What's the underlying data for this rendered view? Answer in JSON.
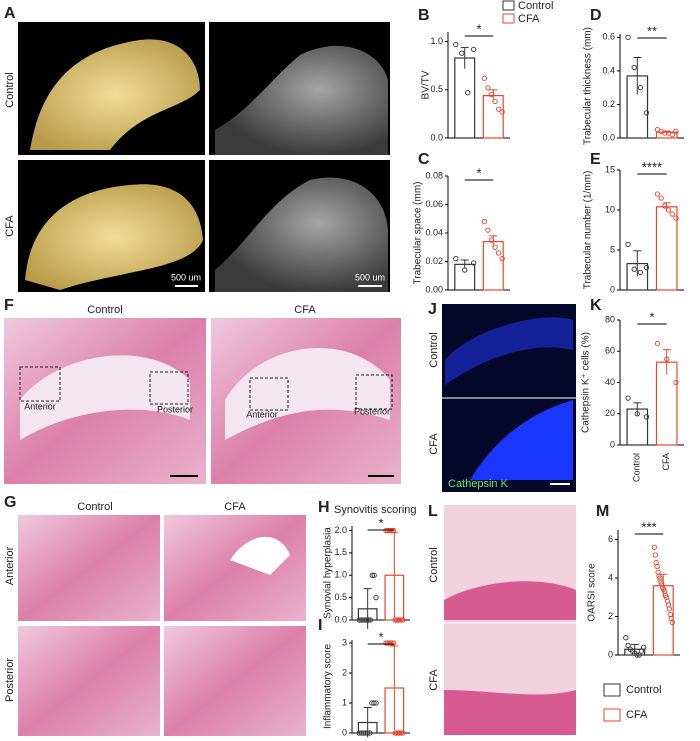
{
  "legend": {
    "entries": [
      {
        "name": "Control",
        "color": "#333333"
      },
      {
        "name": "CFA",
        "color": "#e8452c"
      }
    ]
  },
  "panels": {
    "A": {
      "label": "A",
      "rows": [
        "Control",
        "CFA"
      ],
      "scale_bars": [
        "500 um",
        "500 um"
      ]
    },
    "F": {
      "label": "F",
      "columns": [
        "Control",
        "CFA"
      ],
      "regions": [
        "Anterior",
        "Posterior",
        "Anterior",
        "Posterior"
      ]
    },
    "G": {
      "label": "G",
      "columns": [
        "Control",
        "CFA"
      ],
      "rows": [
        "Anterior",
        "Posterior"
      ]
    },
    "J": {
      "label": "J",
      "rows": [
        "Control",
        "CFA"
      ],
      "stain": "Cathepsin K"
    },
    "L": {
      "label": "L",
      "rows": [
        "Control",
        "CFA"
      ]
    }
  },
  "chart_data": [
    {
      "type": "bar",
      "panel": "B",
      "ylabel": "BV/TV",
      "annotation": "*",
      "colors": [
        "#333333",
        "#e8452c"
      ],
      "values": [
        0.83,
        0.44
      ],
      "errors": [
        0.11,
        0.06
      ],
      "points": [
        [
          0.97,
          0.88,
          0.47,
          0.92
        ],
        [
          0.62,
          0.52,
          0.45,
          0.38,
          0.3,
          0.27
        ]
      ],
      "ylim": [
        0,
        1.1
      ],
      "yticks": [
        {
          "value": 0,
          "label": "0.0"
        },
        0.5,
        {
          "value": 1,
          "label": "1.0"
        }
      ]
    },
    {
      "type": "bar",
      "panel": "C",
      "ylabel": "Trabecular space (mm)",
      "annotation": "*",
      "colors": [
        "#333333",
        "#e8452c"
      ],
      "values": [
        0.018,
        0.034
      ],
      "errors": [
        0.003,
        0.004
      ],
      "points": [
        [
          0.022,
          0.014,
          0.019
        ],
        [
          0.048,
          0.042,
          0.035,
          0.03,
          0.026,
          0.022
        ]
      ],
      "ylim": [
        0,
        0.08
      ],
      "yticks": [
        {
          "value": 0,
          "label": "0.00"
        },
        0.02,
        0.04,
        0.06,
        0.08
      ]
    },
    {
      "type": "bar",
      "panel": "D",
      "ylabel": "Trabecular thickness (mm)",
      "annotation": "**",
      "colors": [
        "#333333",
        "#e8452c"
      ],
      "values": [
        0.37,
        0.035
      ],
      "errors": [
        0.11,
        0.005
      ],
      "points": [
        [
          0.6,
          0.42,
          0.3,
          0.15
        ],
        [
          0.05,
          0.04,
          0.03,
          0.03,
          0.02,
          0.04
        ]
      ],
      "ylim": [
        0,
        0.62
      ],
      "yticks": [
        {
          "value": 0,
          "label": "0.0"
        },
        0.2,
        0.4,
        0.6
      ]
    },
    {
      "type": "bar",
      "panel": "E",
      "ylabel": "Trabecular number (1/mm)",
      "annotation": "****",
      "colors": [
        "#333333",
        "#e8452c"
      ],
      "values": [
        3.3,
        10.4
      ],
      "errors": [
        1.6,
        0.5
      ],
      "points": [
        [
          5.7,
          2.6,
          2.2,
          2.8
        ],
        [
          12,
          11.5,
          10.5,
          10,
          9.5,
          9
        ]
      ],
      "ylim": [
        0,
        15
      ],
      "yticks": [
        0,
        5,
        10,
        15
      ]
    },
    {
      "type": "bar",
      "panel": "K",
      "ylabel": "Cathepsin K⁺ cells (%)",
      "annotation": "*",
      "colors": [
        "#333333",
        "#e8452c"
      ],
      "categories": [
        "Control",
        "CFA"
      ],
      "values": [
        23,
        53
      ],
      "errors": [
        4,
        8
      ],
      "points": [
        [
          30,
          20,
          18
        ],
        [
          65,
          55,
          40
        ]
      ],
      "ylim": [
        0,
        80
      ],
      "yticks": [
        0,
        20,
        40,
        60,
        80
      ]
    },
    {
      "type": "bar",
      "panel": "H",
      "title": "Synovitis scoring",
      "ylabel": "Synovial hyperplasia",
      "annotation": "*",
      "colors": [
        "#333333",
        "#e8452c"
      ],
      "values": [
        0.25,
        1.0
      ],
      "errors": [
        0.45,
        0.95
      ],
      "points": [
        [
          0,
          0,
          0,
          0,
          0,
          0,
          0,
          1,
          1,
          0.5
        ],
        [
          2,
          2,
          2,
          2,
          2,
          2,
          0,
          0,
          0,
          0,
          0,
          0
        ]
      ],
      "ylim": [
        0,
        2.1
      ],
      "yticks": [
        {
          "value": 0,
          "label": "0.0"
        },
        0.5,
        {
          "value": 1,
          "label": "1.0"
        },
        1.5,
        {
          "value": 2,
          "label": "2.0"
        }
      ]
    },
    {
      "type": "bar",
      "panel": "I",
      "ylabel": "Inflammatory score",
      "annotation": "*",
      "colors": [
        "#333333",
        "#e8452c"
      ],
      "values": [
        0.35,
        1.5
      ],
      "errors": [
        0.5,
        1.4
      ],
      "points": [
        [
          0,
          0,
          0,
          0,
          0,
          0,
          1,
          1,
          1
        ],
        [
          3,
          3,
          3,
          3,
          3,
          3,
          0,
          0,
          0,
          0,
          0,
          0
        ]
      ],
      "ylim": [
        0,
        3.1
      ],
      "yticks": [
        0,
        1,
        2,
        3
      ]
    },
    {
      "type": "bar",
      "panel": "M",
      "ylabel": "OARSI score",
      "annotation": "***",
      "colors": [
        "#333333",
        "#e8452c"
      ],
      "values": [
        0.3,
        3.6
      ],
      "errors": [
        0.25,
        0.6
      ],
      "points": [
        [
          0.9,
          0.5,
          0.3,
          0.2,
          0.1,
          0,
          0,
          0.2,
          0.4
        ],
        [
          5.6,
          5.2,
          4.8,
          4.6,
          4.3,
          4.1,
          4,
          3.8,
          3.7,
          3.5,
          3.4,
          3.3,
          3.1,
          3,
          2.8,
          2.6,
          2.4,
          2.1,
          1.9,
          1.7
        ]
      ],
      "ylim": [
        0,
        6.5
      ],
      "yticks": [
        0,
        2,
        4,
        6
      ]
    }
  ]
}
